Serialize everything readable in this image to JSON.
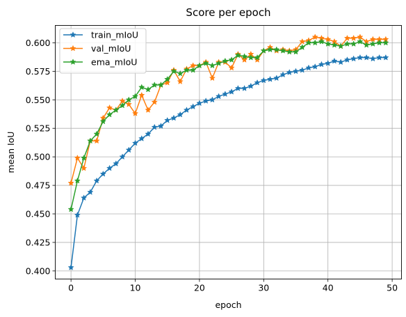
{
  "chart_data": {
    "type": "line",
    "title": "Score per epoch",
    "xlabel": "epoch",
    "ylabel": "mean IoU",
    "xlim": [
      -2.45,
      51.45
    ],
    "ylim": [
      0.3929,
      0.6152
    ],
    "x_ticks": [
      0,
      10,
      20,
      30,
      40,
      50
    ],
    "y_ticks": [
      0.4,
      0.425,
      0.45,
      0.475,
      0.5,
      0.525,
      0.55,
      0.575,
      0.6
    ],
    "y_tick_labels": [
      "0.400",
      "0.425",
      "0.450",
      "0.475",
      "0.500",
      "0.525",
      "0.550",
      "0.575",
      "0.600"
    ],
    "grid": true,
    "legend_position": "upper-left",
    "marker": "star",
    "x": [
      0,
      1,
      2,
      3,
      4,
      5,
      6,
      7,
      8,
      9,
      10,
      11,
      12,
      13,
      14,
      15,
      16,
      17,
      18,
      19,
      20,
      21,
      22,
      23,
      24,
      25,
      26,
      27,
      28,
      29,
      30,
      31,
      32,
      33,
      34,
      35,
      36,
      37,
      38,
      39,
      40,
      41,
      42,
      43,
      44,
      45,
      46,
      47,
      48,
      49
    ],
    "series": [
      {
        "name": "train_mIoU",
        "color": "#1f77b4",
        "values": [
          0.403,
          0.449,
          0.464,
          0.469,
          0.479,
          0.485,
          0.49,
          0.494,
          0.5,
          0.506,
          0.512,
          0.516,
          0.52,
          0.526,
          0.527,
          0.532,
          0.534,
          0.537,
          0.541,
          0.544,
          0.547,
          0.549,
          0.55,
          0.553,
          0.555,
          0.557,
          0.56,
          0.56,
          0.562,
          0.565,
          0.567,
          0.568,
          0.569,
          0.572,
          0.574,
          0.575,
          0.576,
          0.578,
          0.579,
          0.581,
          0.582,
          0.584,
          0.583,
          0.585,
          0.586,
          0.587,
          0.587,
          0.586,
          0.587,
          0.587
        ]
      },
      {
        "name": "val_mIoU",
        "color": "#ff7f0e",
        "values": [
          0.477,
          0.499,
          0.49,
          0.514,
          0.514,
          0.534,
          0.543,
          0.541,
          0.549,
          0.546,
          0.538,
          0.554,
          0.541,
          0.548,
          0.563,
          0.565,
          0.576,
          0.566,
          0.577,
          0.58,
          0.58,
          0.583,
          0.569,
          0.583,
          0.583,
          0.578,
          0.59,
          0.585,
          0.59,
          0.585,
          0.593,
          0.596,
          0.593,
          0.594,
          0.593,
          0.594,
          0.601,
          0.602,
          0.605,
          0.604,
          0.603,
          0.601,
          0.597,
          0.604,
          0.604,
          0.605,
          0.601,
          0.603,
          0.603,
          0.603
        ]
      },
      {
        "name": "ema_mIoU",
        "color": "#2ca02c",
        "values": [
          0.454,
          0.479,
          0.499,
          0.514,
          0.52,
          0.531,
          0.537,
          0.541,
          0.545,
          0.55,
          0.553,
          0.561,
          0.559,
          0.563,
          0.563,
          0.568,
          0.575,
          0.573,
          0.576,
          0.576,
          0.58,
          0.582,
          0.58,
          0.582,
          0.584,
          0.585,
          0.589,
          0.588,
          0.587,
          0.587,
          0.593,
          0.594,
          0.594,
          0.593,
          0.592,
          0.592,
          0.596,
          0.6,
          0.6,
          0.601,
          0.599,
          0.598,
          0.597,
          0.599,
          0.599,
          0.601,
          0.598,
          0.599,
          0.6,
          0.6
        ]
      }
    ]
  }
}
